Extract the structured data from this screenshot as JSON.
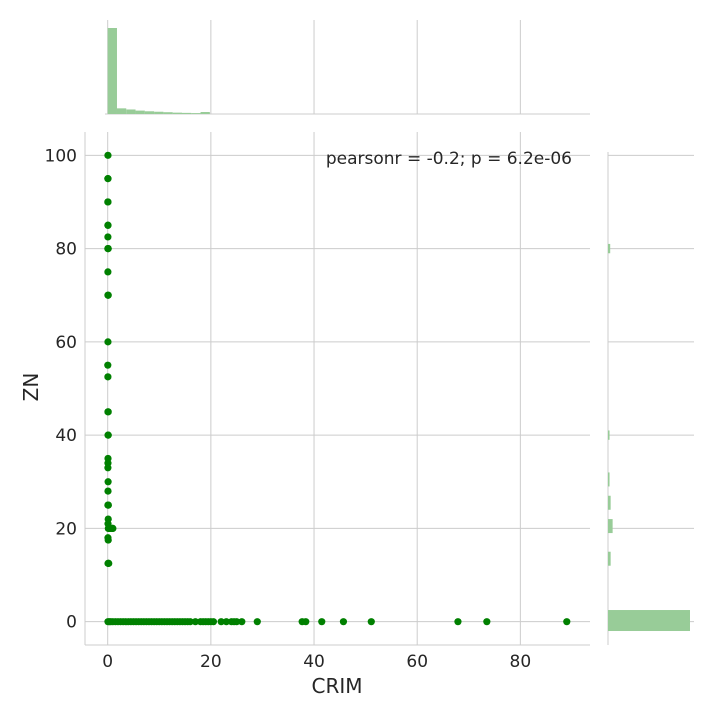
{
  "chart_data": {
    "type": "scatter",
    "title": "",
    "xlabel": "CRIM",
    "ylabel": "ZN",
    "xlim": [
      -4.4,
      93.5
    ],
    "ylim": [
      -5,
      105
    ],
    "x_ticks": [
      0,
      20,
      40,
      60,
      80
    ],
    "y_ticks": [
      0,
      20,
      40,
      60,
      80,
      100
    ],
    "grid": true,
    "annotation": "pearsonr = -0.2; p = 6.2e-06",
    "colors": {
      "points": "#008000",
      "histogram": "#98cc98",
      "grid": "#cccccc",
      "text": "#262626"
    },
    "series": [
      {
        "points": [
          [
            0.05,
            100
          ],
          [
            0.03,
            95
          ],
          [
            0.06,
            95
          ],
          [
            0.03,
            90
          ],
          [
            0.05,
            90
          ],
          [
            0.04,
            85
          ],
          [
            0.06,
            85
          ],
          [
            0.04,
            82.5
          ],
          [
            0.03,
            80
          ],
          [
            0.07,
            80
          ],
          [
            0.1,
            80
          ],
          [
            0.04,
            75
          ],
          [
            0.05,
            70
          ],
          [
            0.1,
            70
          ],
          [
            0.05,
            60
          ],
          [
            0.02,
            55
          ],
          [
            0.04,
            52.5
          ],
          [
            0.05,
            45
          ],
          [
            0.1,
            45
          ],
          [
            0.07,
            40
          ],
          [
            0.1,
            40
          ],
          [
            0.06,
            35
          ],
          [
            0.05,
            34
          ],
          [
            0.04,
            33
          ],
          [
            0.08,
            30
          ],
          [
            0.06,
            28
          ],
          [
            0.04,
            25
          ],
          [
            0.13,
            25
          ],
          [
            0.1,
            22
          ],
          [
            0.06,
            21
          ],
          [
            0.12,
            20
          ],
          [
            0.3,
            20
          ],
          [
            0.6,
            20
          ],
          [
            0.9,
            20
          ],
          [
            1.0,
            20
          ],
          [
            0.05,
            18
          ],
          [
            0.1,
            17.5
          ],
          [
            0.06,
            12.5
          ],
          [
            0.15,
            12.5
          ],
          [
            0.2,
            12.5
          ],
          [
            0.05,
            0
          ],
          [
            0.3,
            0
          ],
          [
            0.6,
            0
          ],
          [
            1.0,
            0
          ],
          [
            1.5,
            0
          ],
          [
            2.0,
            0
          ],
          [
            2.5,
            0
          ],
          [
            3.0,
            0
          ],
          [
            3.5,
            0
          ],
          [
            4.0,
            0
          ],
          [
            4.5,
            0
          ],
          [
            5.0,
            0
          ],
          [
            5.5,
            0
          ],
          [
            6.0,
            0
          ],
          [
            6.5,
            0
          ],
          [
            7.0,
            0
          ],
          [
            7.5,
            0
          ],
          [
            8.0,
            0
          ],
          [
            8.5,
            0
          ],
          [
            9.0,
            0
          ],
          [
            9.5,
            0
          ],
          [
            10.0,
            0
          ],
          [
            10.5,
            0
          ],
          [
            11.0,
            0
          ],
          [
            11.5,
            0
          ],
          [
            12.0,
            0
          ],
          [
            12.5,
            0
          ],
          [
            13.0,
            0
          ],
          [
            13.5,
            0
          ],
          [
            14.0,
            0
          ],
          [
            14.5,
            0
          ],
          [
            15.0,
            0
          ],
          [
            15.5,
            0
          ],
          [
            16.0,
            0
          ],
          [
            17.0,
            0
          ],
          [
            18.0,
            0
          ],
          [
            18.5,
            0
          ],
          [
            19.0,
            0
          ],
          [
            19.5,
            0
          ],
          [
            20.0,
            0
          ],
          [
            20.5,
            0
          ],
          [
            22.0,
            0
          ],
          [
            23.0,
            0
          ],
          [
            24.0,
            0
          ],
          [
            24.5,
            0
          ],
          [
            25.0,
            0
          ],
          [
            26.0,
            0
          ],
          [
            29.0,
            0
          ],
          [
            37.7,
            0
          ],
          [
            38.4,
            0
          ],
          [
            41.5,
            0
          ],
          [
            45.7,
            0
          ],
          [
            51.1,
            0
          ],
          [
            67.9,
            0
          ],
          [
            73.5,
            0
          ],
          [
            89.0,
            0
          ]
        ]
      }
    ],
    "marginal_x": {
      "bins_start": 0,
      "bin_width": 1.8,
      "counts": [
        380,
        25,
        20,
        15,
        12,
        10,
        8,
        6,
        5,
        4,
        3,
        3,
        3,
        3,
        3,
        3,
        3,
        3,
        3,
        3,
        2,
        2,
        2,
        2,
        2,
        2,
        2,
        2,
        2,
        2,
        2,
        2,
        2,
        2,
        2,
        2,
        2,
        2,
        2,
        2,
        2,
        2,
        2,
        2,
        2,
        2,
        2,
        2,
        2,
        2
      ],
      "drawn_bins": 11
    },
    "marginal_y": {
      "bins": [
        {
          "from": -2,
          "to": 2.5,
          "count": 372
        },
        {
          "from": 12,
          "to": 15,
          "count": 12
        },
        {
          "from": 19,
          "to": 22,
          "count": 21
        },
        {
          "from": 24,
          "to": 27,
          "count": 12
        },
        {
          "from": 29,
          "to": 32,
          "count": 7
        },
        {
          "from": 39,
          "to": 41,
          "count": 7
        },
        {
          "from": 79,
          "to": 81,
          "count": 10
        }
      ]
    }
  }
}
